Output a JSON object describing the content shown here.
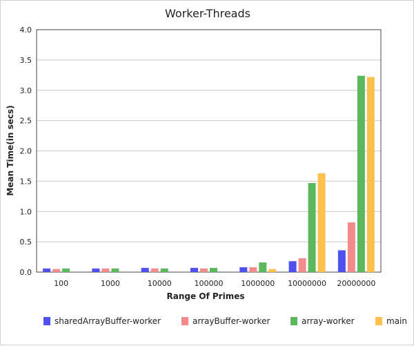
{
  "chart_data": {
    "type": "bar",
    "title": "Worker-Threads",
    "xlabel": "Range Of Primes",
    "ylabel": "Mean Time(in secs)",
    "ylim": [
      0,
      4
    ],
    "yticks": [
      "0.0",
      "0.5",
      "1.0",
      "1.5",
      "2.0",
      "2.5",
      "3.0",
      "3.5",
      "4.0"
    ],
    "grid": true,
    "legend_position": "bottom",
    "categories": [
      "100",
      "1000",
      "10000",
      "100000",
      "1000000",
      "10000000",
      "20000000"
    ],
    "series": [
      {
        "name": "sharedArrayBuffer-worker",
        "color": "#5050f0",
        "values": [
          0.06,
          0.06,
          0.07,
          0.07,
          0.08,
          0.18,
          0.36
        ]
      },
      {
        "name": "arrayBuffer-worker",
        "color": "#f28c8c",
        "values": [
          0.05,
          0.06,
          0.06,
          0.06,
          0.08,
          0.23,
          0.82
        ]
      },
      {
        "name": "array-worker",
        "color": "#5cb85c",
        "values": [
          0.06,
          0.06,
          0.06,
          0.07,
          0.16,
          1.47,
          3.24
        ]
      },
      {
        "name": "main",
        "color": "#ffc04d",
        "values": [
          0.0,
          0.0,
          0.0,
          0.0,
          0.05,
          1.63,
          3.22
        ]
      }
    ]
  }
}
